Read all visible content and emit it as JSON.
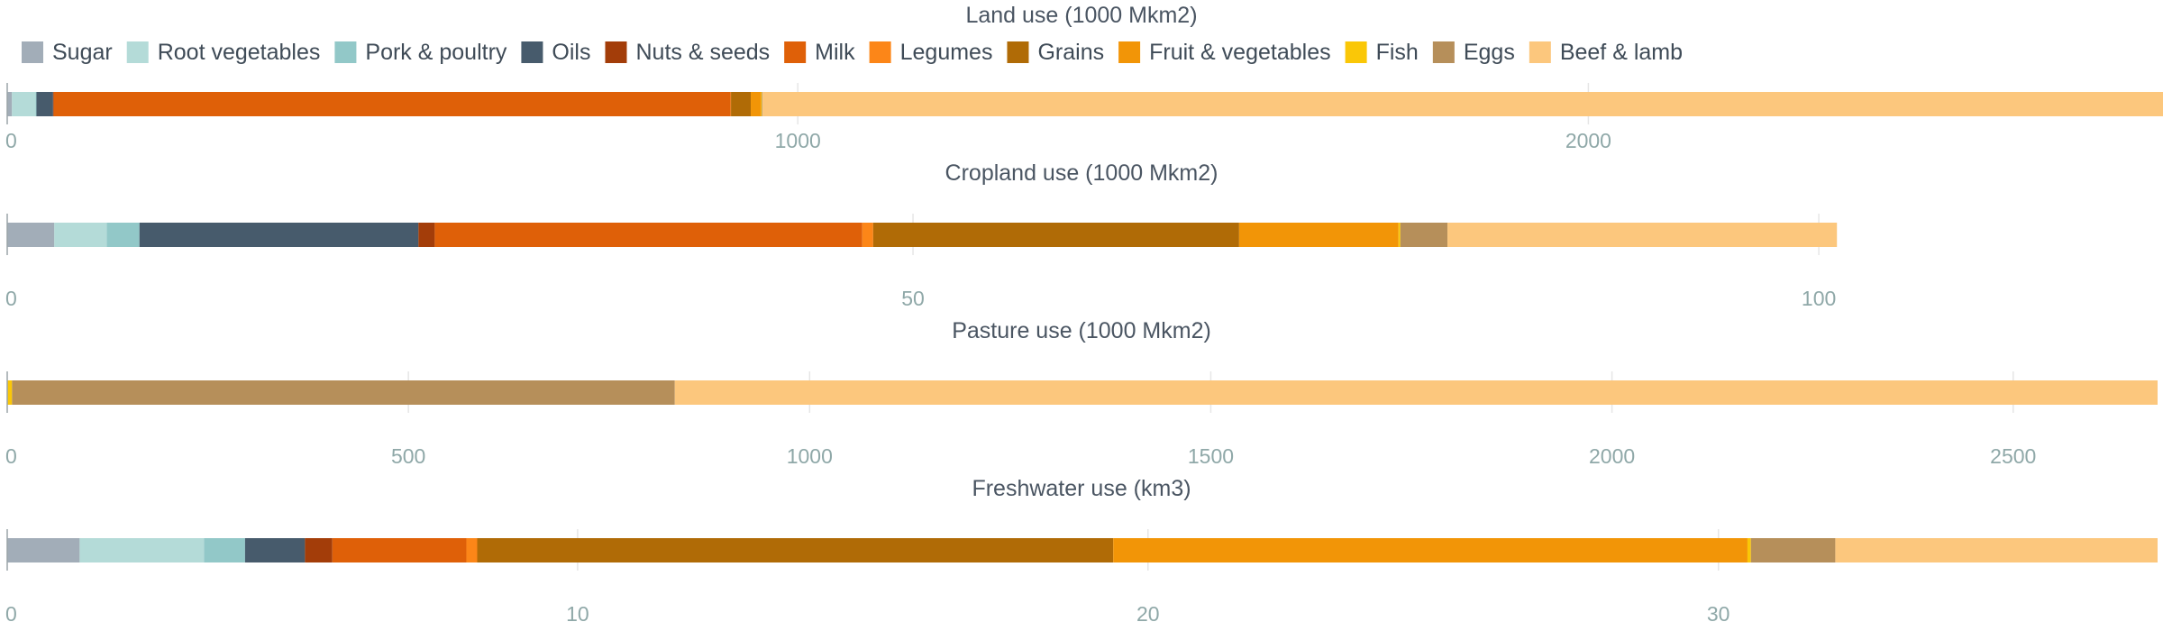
{
  "chart_data": {
    "type": "bar",
    "orientation": "horizontal-stacked",
    "legend": {
      "placement": "top-left",
      "items": [
        {
          "name": "Sugar",
          "color": "#a2adb8"
        },
        {
          "name": "Root vegetables",
          "color": "#b4dbd8"
        },
        {
          "name": "Pork & poultry",
          "color": "#92c8c8"
        },
        {
          "name": "Oils",
          "color": "#475b6c"
        },
        {
          "name": "Nuts & seeds",
          "color": "#a33d09"
        },
        {
          "name": "Milk",
          "color": "#df6008"
        },
        {
          "name": "Legumes",
          "color": "#fc8618"
        },
        {
          "name": "Grains",
          "color": "#b06b06"
        },
        {
          "name": "Fruit & vegetables",
          "color": "#f29507"
        },
        {
          "name": "Fish",
          "color": "#fac707"
        },
        {
          "name": "Eggs",
          "color": "#b68f5a"
        },
        {
          "name": "Beef & lamb",
          "color": "#fcc77d"
        }
      ]
    },
    "panels": [
      {
        "title": "Land use (1000 Mkm2)",
        "xlim": [
          0,
          2720
        ],
        "ticks": [
          0,
          1000,
          2000
        ],
        "grid": true,
        "values": {
          "Sugar": 6,
          "Root vegetables": 30,
          "Pork & poultry": 1,
          "Oils": 21,
          "Nuts & seeds": 1,
          "Milk": 856,
          "Legumes": 0.5,
          "Grains": 25,
          "Fruit & vegetables": 13,
          "Fish": 1,
          "Eggs": 1,
          "Beef & lamb": 1878
        }
      },
      {
        "title": "Cropland use (1000 Mkm2)",
        "xlim": [
          0,
          118.7
        ],
        "ticks": [
          0,
          50,
          100
        ],
        "grid": true,
        "values": {
          "Sugar": 2.6,
          "Root vegetables": 2.9,
          "Pork & poultry": 1.8,
          "Oils": 15.4,
          "Nuts & seeds": 0.9,
          "Milk": 23.6,
          "Legumes": 0.6,
          "Grains": 20.2,
          "Fruit & vegetables": 8.8,
          "Fish": 0.1,
          "Eggs": 2.6,
          "Beef & lamb": 21.5
        }
      },
      {
        "title": "Pasture use (1000 Mkm2)",
        "xlim": [
          0,
          2680
        ],
        "ticks": [
          0,
          500,
          1000,
          1500,
          2000,
          2500
        ],
        "grid": true,
        "values": {
          "Sugar": 0,
          "Root vegetables": 0,
          "Pork & poultry": 0,
          "Oils": 0,
          "Nuts & seeds": 0,
          "Milk": 0,
          "Legumes": 0,
          "Grains": 0,
          "Fruit & vegetables": 0,
          "Fish": 6,
          "Eggs": 826,
          "Beef & lamb": 1848
        }
      },
      {
        "title": "Freshwater use (km3)",
        "xlim": [
          0,
          37.7
        ],
        "ticks": [
          0,
          10,
          20,
          30
        ],
        "grid": true,
        "values": {
          "Sugar": 1.27,
          "Root vegetables": 2.18,
          "Pork & poultry": 0.72,
          "Oils": 1.05,
          "Nuts & seeds": 0.48,
          "Milk": 2.35,
          "Legumes": 0.19,
          "Grains": 11.15,
          "Fruit & vegetables": 11.12,
          "Fish": 0.06,
          "Eggs": 1.48,
          "Beef & lamb": 5.65
        }
      }
    ]
  }
}
